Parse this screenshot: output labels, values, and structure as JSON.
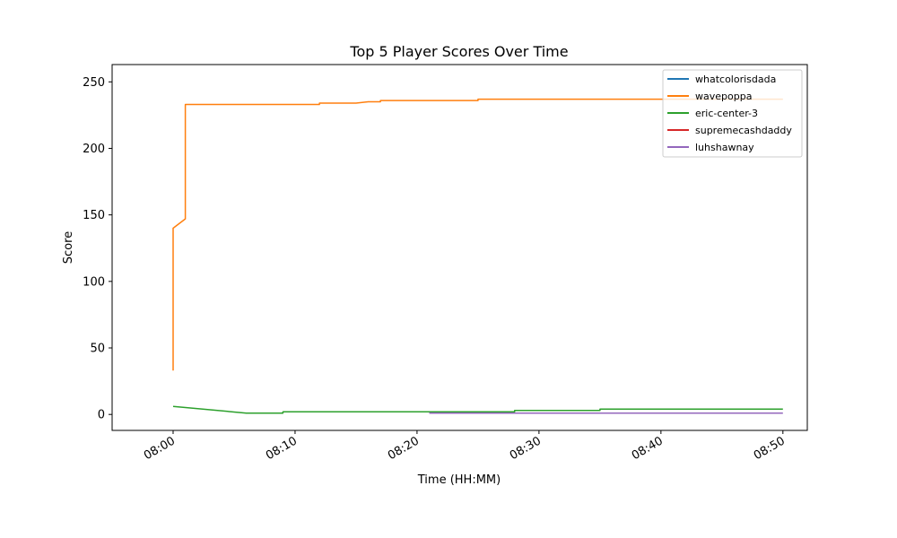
{
  "chart_data": {
    "type": "line",
    "title": "Top 5 Player Scores Over Time",
    "xlabel": "Time (HH:MM)",
    "ylabel": "Score",
    "xlim": [
      "07:55",
      "08:52"
    ],
    "ylim": [
      -12,
      263
    ],
    "x_ticks": [
      "08:00",
      "08:10",
      "08:20",
      "08:30",
      "08:40",
      "08:50"
    ],
    "y_ticks": [
      0,
      50,
      100,
      150,
      200,
      250
    ],
    "grid": false,
    "legend_position": "top-right",
    "series": [
      {
        "name": "whatcolorisdada",
        "color": "#1f77b4",
        "points": []
      },
      {
        "name": "wavepoppa",
        "color": "#ff7f0e",
        "points": [
          [
            "08:00",
            33
          ],
          [
            "08:00",
            70
          ],
          [
            "08:00",
            105
          ],
          [
            "08:00",
            105
          ],
          [
            "08:00",
            105
          ],
          [
            "08:00",
            118
          ],
          [
            "08:00",
            125
          ],
          [
            "08:00",
            140
          ],
          [
            "08:01",
            147
          ],
          [
            "08:01",
            155
          ],
          [
            "08:01",
            232
          ],
          [
            "08:01",
            233
          ],
          [
            "08:12",
            233
          ],
          [
            "08:12",
            234
          ],
          [
            "08:15",
            234
          ],
          [
            "08:16",
            235
          ],
          [
            "08:17",
            235
          ],
          [
            "08:17",
            236
          ],
          [
            "08:25",
            236
          ],
          [
            "08:25",
            237
          ],
          [
            "08:50",
            237
          ]
        ]
      },
      {
        "name": "eric-center-3",
        "color": "#2ca02c",
        "points": [
          [
            "08:00",
            6
          ],
          [
            "08:06",
            1
          ],
          [
            "08:09",
            1
          ],
          [
            "08:09",
            2
          ],
          [
            "08:28",
            2
          ],
          [
            "08:28",
            3
          ],
          [
            "08:35",
            3
          ],
          [
            "08:35",
            4
          ],
          [
            "08:50",
            4
          ]
        ]
      },
      {
        "name": "supremecashdaddy",
        "color": "#d62728",
        "points": []
      },
      {
        "name": "luhshawnay",
        "color": "#9467bd",
        "points": [
          [
            "08:21",
            1
          ],
          [
            "08:50",
            1
          ]
        ]
      }
    ]
  }
}
